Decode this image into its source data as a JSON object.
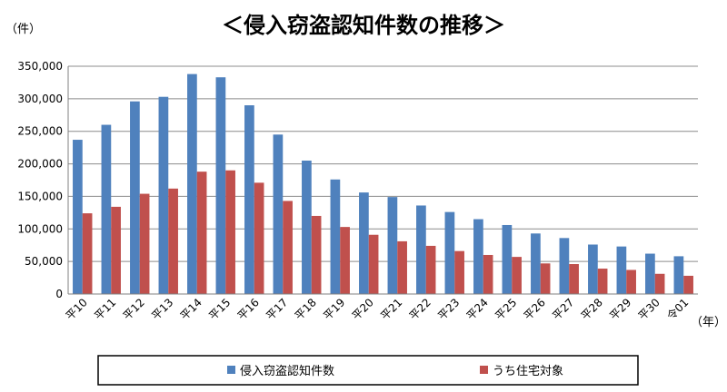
{
  "chart_data": {
    "type": "bar",
    "title": "＜侵入窃盗認知件数の推移＞",
    "y_unit": "（件）",
    "x_unit": "（年）",
    "categories": [
      "平10",
      "平11",
      "平12",
      "平13",
      "平14",
      "平15",
      "平16",
      "平17",
      "平18",
      "平19",
      "平20",
      "平21",
      "平22",
      "平23",
      "平24",
      "平25",
      "平26",
      "平27",
      "平28",
      "平29",
      "平30",
      "令01"
    ],
    "series": [
      {
        "name": "侵入窃盗認知件数",
        "color": "#4f81bd",
        "values": [
          237000,
          260000,
          296000,
          303000,
          338000,
          333000,
          290000,
          245000,
          205000,
          176000,
          156000,
          149000,
          136000,
          126000,
          115000,
          106000,
          93000,
          86000,
          76000,
          73000,
          62000,
          58000
        ]
      },
      {
        "name": "うち住宅対象",
        "color": "#c0504d",
        "values": [
          124000,
          134000,
          154000,
          162000,
          188000,
          190000,
          171000,
          143000,
          120000,
          103000,
          91000,
          81000,
          74000,
          66000,
          60000,
          57000,
          47000,
          46000,
          39000,
          37000,
          31000,
          28000
        ]
      }
    ],
    "ylim": [
      0,
      350000
    ],
    "yticks": [
      "0",
      "50,000",
      "100,000",
      "150,000",
      "200,000",
      "250,000",
      "300,000",
      "350,000"
    ],
    "grid": true,
    "legend_position": "bottom"
  }
}
